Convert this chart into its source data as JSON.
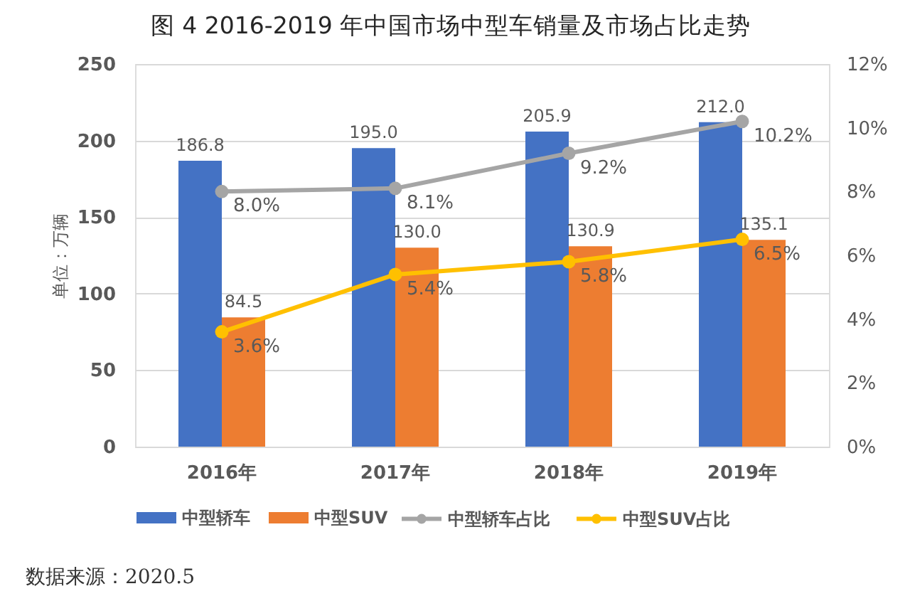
{
  "chart_data": {
    "type": "bar",
    "title": "图 4 2016-2019 年中国市场中型车销量及市场占比走势",
    "ylabel": "单位：万辆",
    "categories": [
      "2016年",
      "2017年",
      "2018年",
      "2019年"
    ],
    "series": [
      {
        "name": "中型轿车",
        "color": "#4472c4",
        "values": [
          186.8,
          195.0,
          205.9,
          212.0
        ],
        "value_labels": [
          "186.8",
          "195.0",
          "205.9",
          "212.0"
        ]
      },
      {
        "name": "中型SUV",
        "color": "#ed7d31",
        "values": [
          84.5,
          130.0,
          130.9,
          135.1
        ],
        "value_labels": [
          "84.5",
          "130.0",
          "130.9",
          "135.1"
        ]
      },
      {
        "name": "中型轿车占比",
        "type": "line",
        "axis": "y2",
        "color": "#a5a5a5",
        "values": [
          8.0,
          8.1,
          9.2,
          10.2
        ],
        "value_labels": [
          "8.0%",
          "8.1%",
          "9.2%",
          "10.2%"
        ]
      },
      {
        "name": "中型SUV占比",
        "type": "line",
        "axis": "y2",
        "color": "#ffc000",
        "values": [
          3.6,
          5.4,
          5.8,
          6.5
        ],
        "value_labels": [
          "3.6%",
          "5.4%",
          "5.8%",
          "6.5%"
        ]
      }
    ],
    "ylim": [
      0,
      250
    ],
    "yticks": [
      0,
      50,
      100,
      150,
      200,
      250
    ],
    "y2lim": [
      0,
      12
    ],
    "y2ticks": [
      {
        "value": 0,
        "label": "0%"
      },
      {
        "value": 2,
        "label": "2%"
      },
      {
        "value": 4,
        "label": "4%"
      },
      {
        "value": 6,
        "label": "6%"
      },
      {
        "value": 8,
        "label": "8%"
      },
      {
        "value": 10,
        "label": "10%"
      },
      {
        "value": 12,
        "label": "12%"
      }
    ],
    "grid": "y",
    "legend": "bottom",
    "marker": "circle",
    "line_style": "solid",
    "annotations": [
      "数据来源：2020.5"
    ]
  }
}
